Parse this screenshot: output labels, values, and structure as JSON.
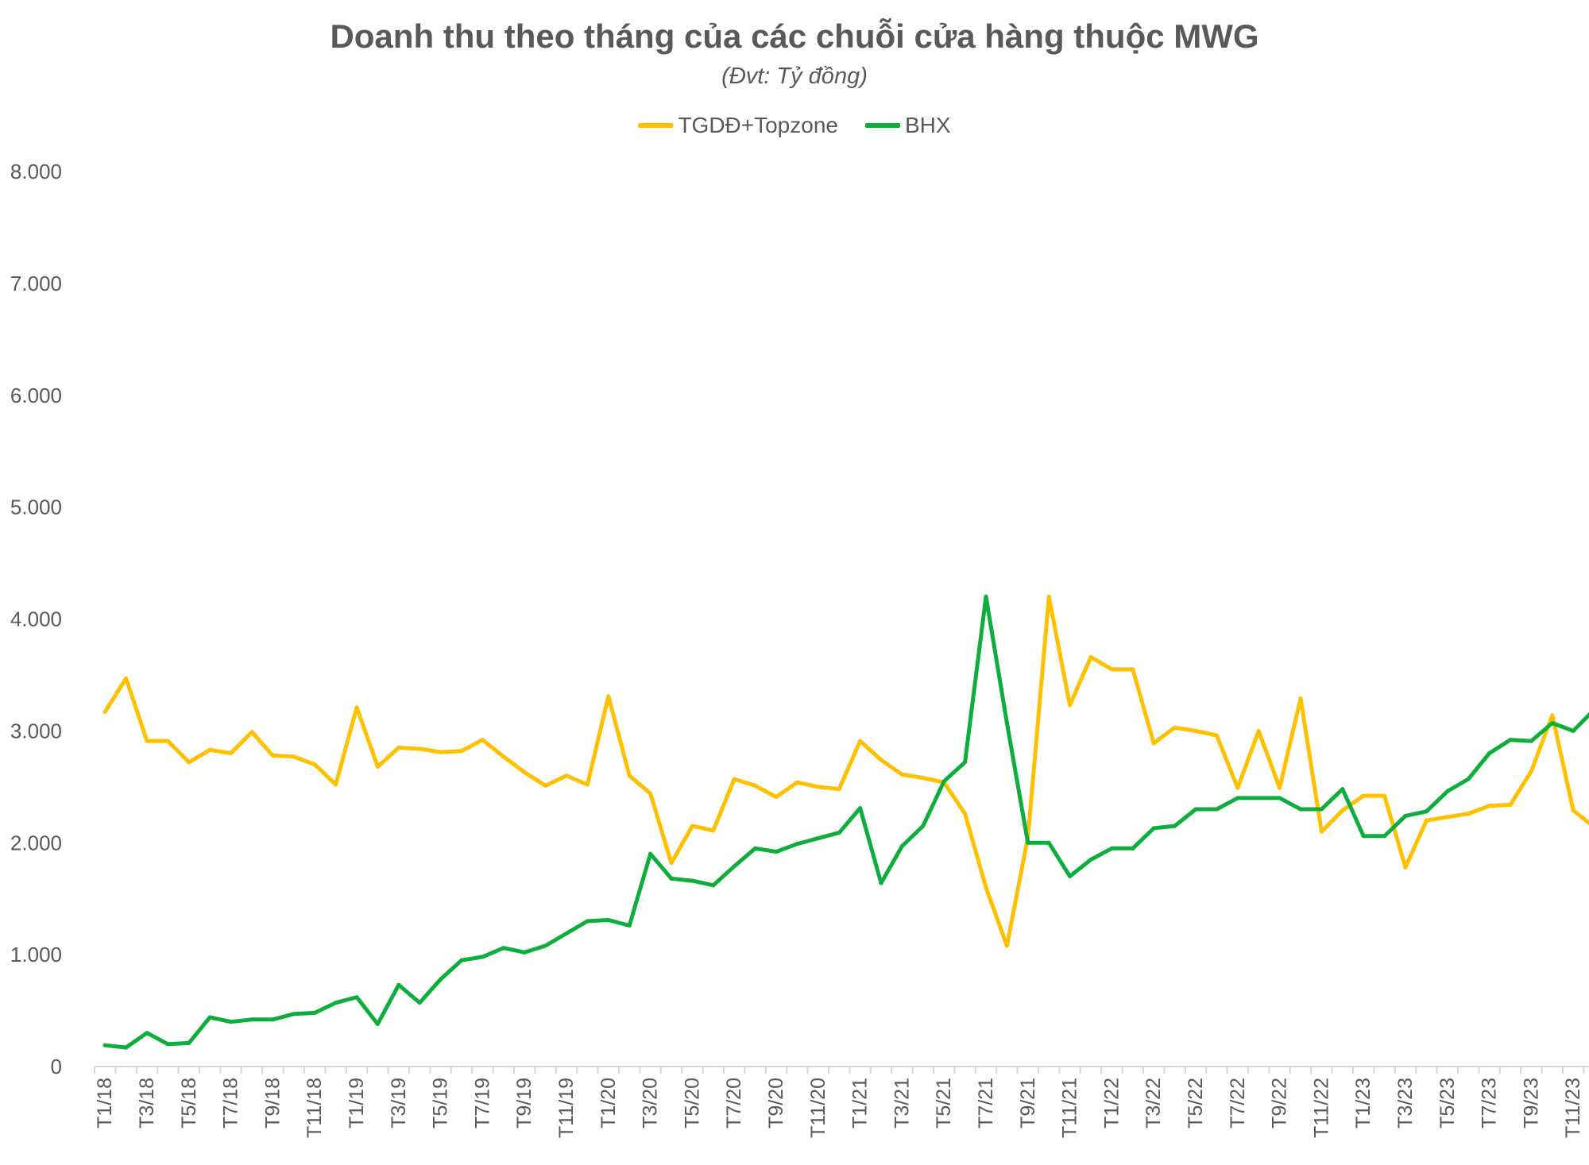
{
  "chart_data": {
    "type": "line",
    "title": "Doanh thu theo tháng của các chuỗi cửa hàng thuộc MWG",
    "subtitle": "(Đvt: Tỷ đồng)",
    "xlabel": "",
    "ylabel": "",
    "ylim": [
      0,
      8000
    ],
    "yticks": [
      0,
      1000,
      2000,
      3000,
      4000,
      5000,
      6000,
      7000,
      8000
    ],
    "ytick_labels": [
      "0",
      "1.000",
      "2.000",
      "3.000",
      "4.000",
      "5.000",
      "6.000",
      "7.000",
      "8.000"
    ],
    "grid": false,
    "legend_position": "top-center",
    "categories": [
      "T1/18",
      "T2/18",
      "T3/18",
      "T4/18",
      "T5/18",
      "T6/18",
      "T7/18",
      "T8/18",
      "T9/18",
      "T10/18",
      "T11/18",
      "T12/18",
      "T1/19",
      "T2/19",
      "T3/19",
      "T4/19",
      "T5/19",
      "T6/19",
      "T7/19",
      "T8/19",
      "T9/19",
      "T10/19",
      "T11/19",
      "T12/19",
      "T1/20",
      "T2/20",
      "T3/20",
      "T4/20",
      "T5/20",
      "T6/20",
      "T7/20",
      "T8/20",
      "T9/20",
      "T10/20",
      "T11/20",
      "T12/20",
      "T1/21",
      "T2/21",
      "T3/21",
      "T4/21",
      "T5/21",
      "T6/21",
      "T7/21",
      "T8/21",
      "T9/21",
      "T10/21",
      "T11/21",
      "T12/21",
      "T1/22",
      "T2/22",
      "T3/22",
      "T4/22",
      "T5/22",
      "T6/22",
      "T7/22",
      "T8/22",
      "T9/22",
      "T10/22",
      "T11/22",
      "T12/22",
      "T1/23",
      "T2/23",
      "T3/23",
      "T4/23",
      "T5/23",
      "T6/23",
      "T7/23",
      "T8/23",
      "T9/23",
      "T10/23",
      "T11/23",
      "T12/23"
    ],
    "xtick_labels": [
      "T1/18",
      "T3/18",
      "T5/18",
      "T7/18",
      "T9/18",
      "T11/18",
      "T1/19",
      "T3/19",
      "T5/19",
      "T7/19",
      "T9/19",
      "T11/19",
      "T1/20",
      "T3/20",
      "T5/20",
      "T7/20",
      "T9/20",
      "T11/20",
      "T1/21",
      "T3/21",
      "T5/21",
      "T7/21",
      "T9/21",
      "T11/21",
      "T1/22",
      "T3/22",
      "T5/22",
      "T7/22",
      "T9/22",
      "T11/22",
      "T1/23",
      "T3/23",
      "T5/23",
      "T7/23",
      "T9/23",
      "T11/23"
    ],
    "series": [
      {
        "name": "TGDĐ+Topzone",
        "color": "#FFC000",
        "values": [
          3170,
          3470,
          2910,
          2910,
          2720,
          2830,
          2800,
          2990,
          2780,
          2770,
          2700,
          2520,
          3210,
          2680,
          2850,
          2840,
          2810,
          2820,
          2920,
          2770,
          2630,
          2510,
          2600,
          2520,
          3310,
          2600,
          2440,
          1820,
          2150,
          2110,
          2570,
          2510,
          2410,
          2540,
          2500,
          2480,
          2910,
          2740,
          2610,
          2580,
          2540,
          2260,
          1600,
          1080,
          2050,
          4200,
          3230,
          3660,
          3550,
          3550,
          2890,
          3030,
          3000,
          2960,
          2490,
          3000,
          2490,
          3290,
          2100,
          2290,
          2420,
          2420,
          1780,
          2200,
          2230,
          2260,
          2330,
          2340,
          2640,
          3140,
          2290,
          2140
        ]
      },
      {
        "name": "BHX",
        "color": "#0DAE3C",
        "values": [
          190,
          170,
          300,
          200,
          210,
          440,
          400,
          420,
          420,
          470,
          480,
          570,
          620,
          380,
          730,
          570,
          780,
          950,
          980,
          1060,
          1020,
          1080,
          1190,
          1300,
          1310,
          1260,
          1900,
          1680,
          1660,
          1620,
          1790,
          1950,
          1920,
          1990,
          2040,
          2090,
          2310,
          1640,
          1970,
          2150,
          2550,
          2720,
          4200,
          3070,
          2000,
          2000,
          1700,
          1850,
          1950,
          1950,
          2130,
          2150,
          2300,
          2300,
          2400,
          2400,
          2400,
          2300,
          2300,
          2480,
          2060,
          2060,
          2240,
          2280,
          2460,
          2570,
          2800,
          2920,
          2910,
          3070,
          3000,
          3190
        ]
      }
    ]
  }
}
